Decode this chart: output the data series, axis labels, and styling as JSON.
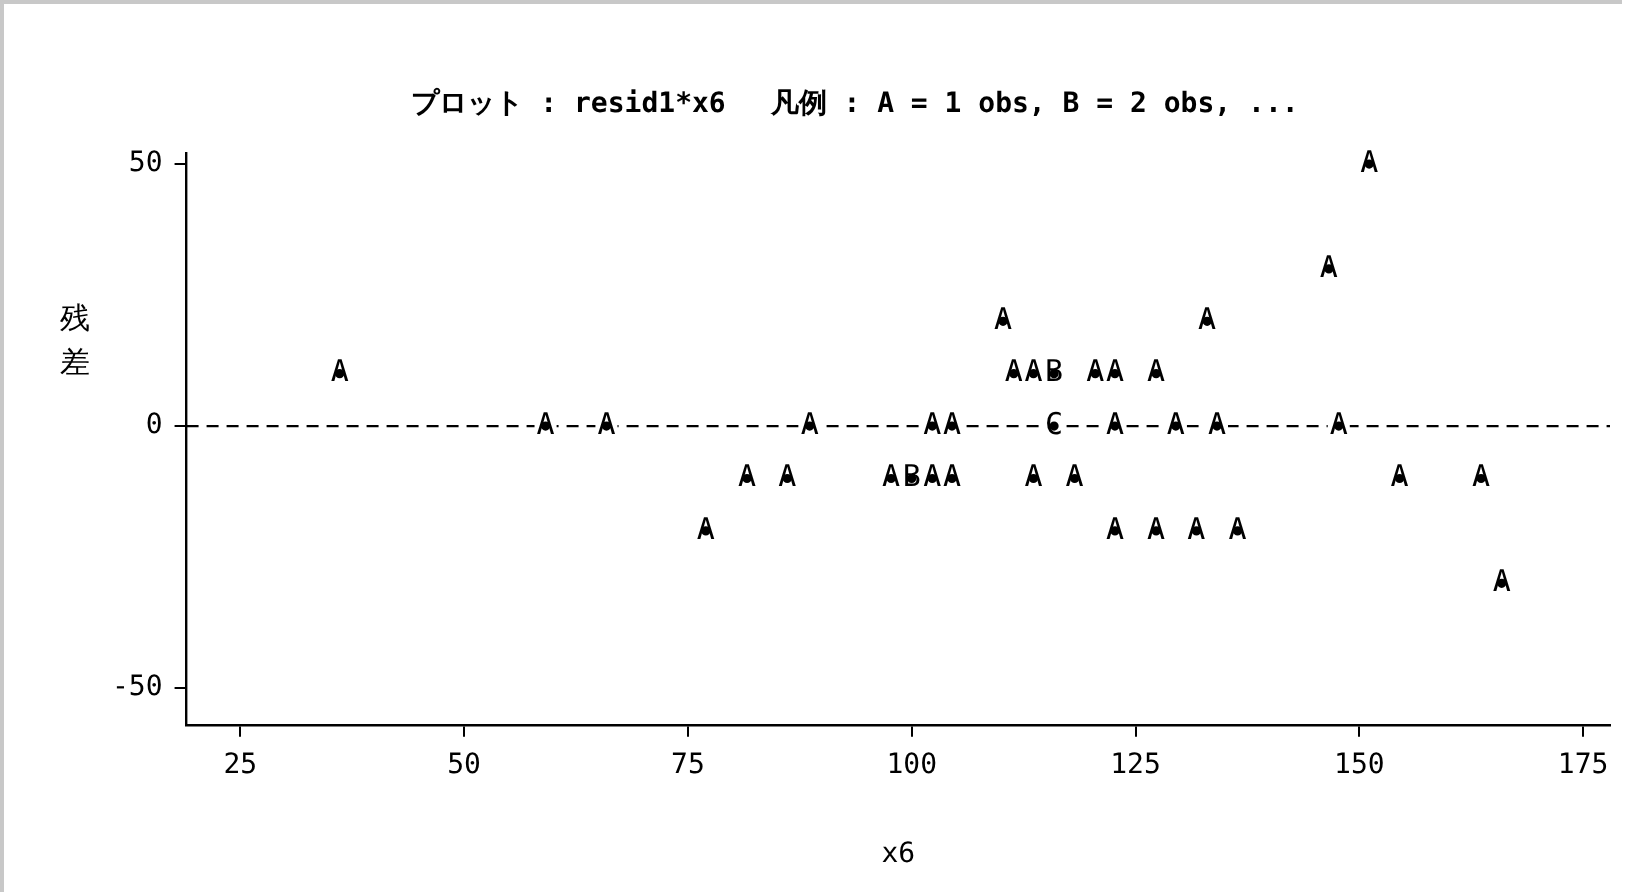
{
  "chart_data": {
    "type": "scatter",
    "title": "プロット : resid1*x6　 凡例 : A = 1 obs, B = 2 obs, ...",
    "xlabel": "x6",
    "ylabel": "残差",
    "xlim": [
      19,
      178
    ],
    "xticks": [
      25,
      50,
      75,
      100,
      125,
      150,
      175
    ],
    "ylim": [
      -57,
      52
    ],
    "yticks": [
      -50,
      0,
      50
    ],
    "grid": false,
    "legend": false,
    "ref_lines": [
      {
        "axis": "y",
        "value": 0,
        "line_style": "dashed",
        "color": "#000000"
      }
    ],
    "series": [
      {
        "name": "A",
        "color": "#000000",
        "x": [
          36.1,
          59.1,
          65.9,
          81.6,
          86.1,
          77.0,
          88.6,
          151.1,
          146.6,
          110.2,
          133.0,
          111.4,
          113.6,
          120.5,
          122.7,
          127.3,
          102.3,
          104.5,
          122.7,
          129.5,
          134.1,
          147.7,
          97.7,
          102.3,
          104.5,
          113.6,
          118.2,
          154.5,
          163.6,
          122.7,
          127.3,
          131.8,
          136.4,
          165.9
        ],
        "values": [
          10,
          0,
          0,
          -10,
          -10,
          -20,
          0,
          50,
          30,
          20,
          20,
          10,
          10,
          10,
          10,
          10,
          0,
          0,
          0,
          0,
          0,
          0,
          -10,
          -10,
          -10,
          -10,
          -10,
          -10,
          -10,
          -20,
          -20,
          -20,
          -20,
          -30
        ]
      },
      {
        "name": "B",
        "color": "#000000",
        "x": [
          115.9,
          100.0
        ],
        "values": [
          10,
          -10
        ]
      },
      {
        "name": "C",
        "color": "#000000",
        "x": [
          115.9
        ],
        "values": [
          0
        ]
      }
    ]
  }
}
